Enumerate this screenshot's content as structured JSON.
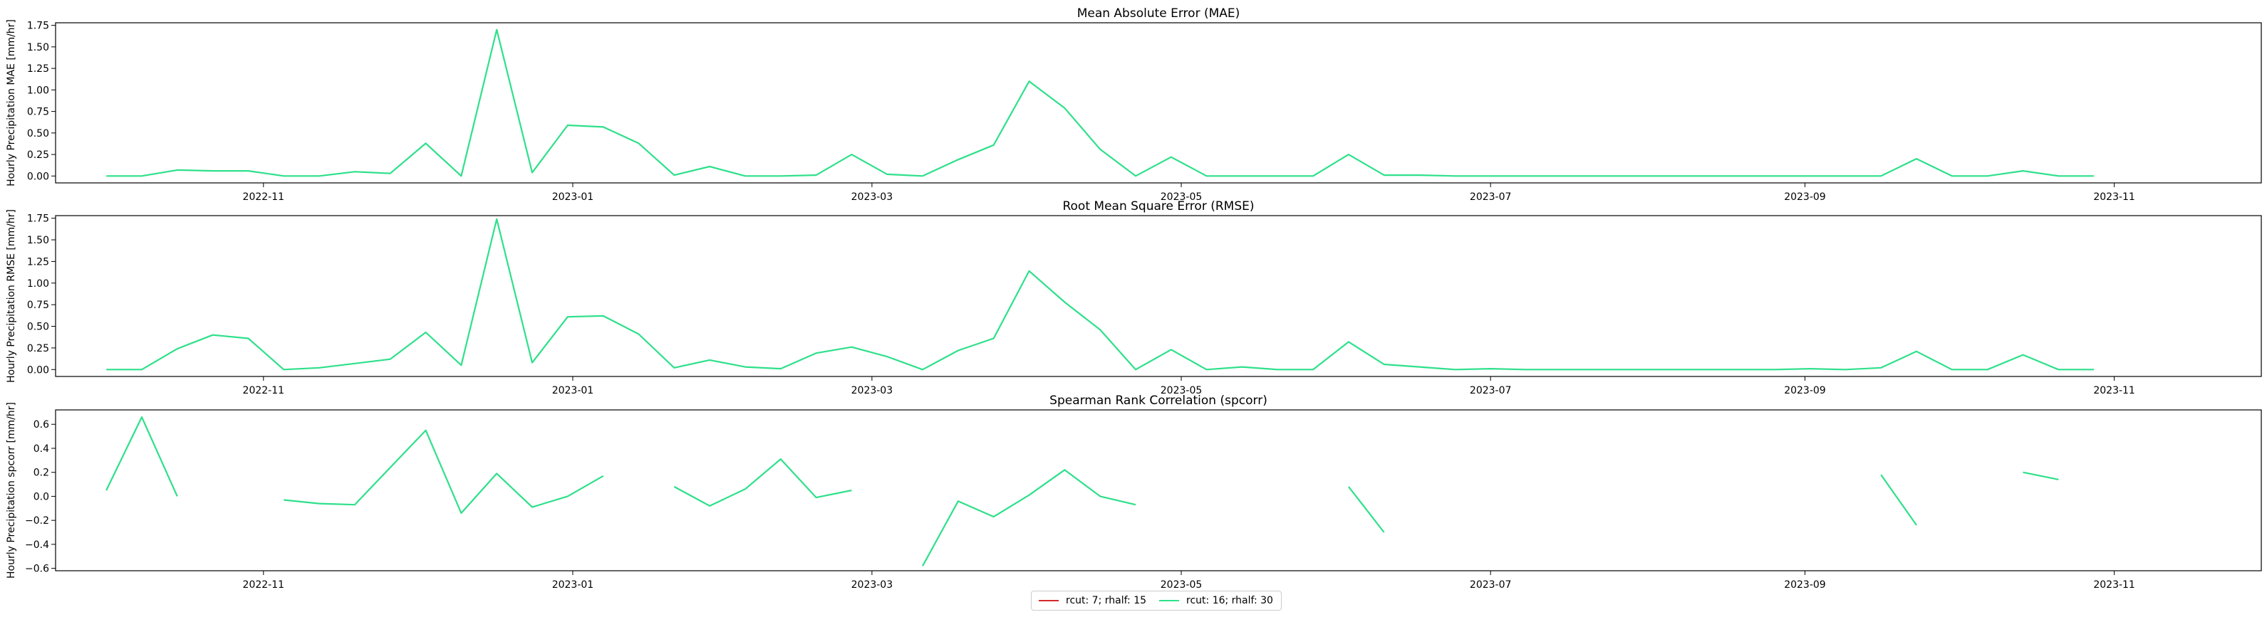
{
  "colors": {
    "series1": "#d62728",
    "series2": "#2ee08a"
  },
  "chart_data": [
    {
      "type": "line",
      "title": "Mean Absolute Error (MAE)",
      "ylabel": "Hourly Precipitation MAE [mm/hr]",
      "xlim": [
        "2022-09-21",
        "2023-11-30"
      ],
      "ylim": [
        -0.08,
        1.78
      ],
      "yticks": [
        0.0,
        0.25,
        0.5,
        0.75,
        1.0,
        1.25,
        1.5,
        1.75
      ],
      "yticklabels": [
        "0.00",
        "0.25",
        "0.50",
        "0.75",
        "1.00",
        "1.25",
        "1.50",
        "1.75"
      ],
      "xticks": [
        "2022-11-01",
        "2023-01-01",
        "2023-03-01",
        "2023-05-01",
        "2023-07-01",
        "2023-09-01",
        "2023-11-01"
      ],
      "xticklabels": [
        "2022-11",
        "2023-01",
        "2023-03",
        "2023-05",
        "2023-07",
        "2023-09",
        "2023-11"
      ],
      "series": [
        {
          "color": "#2ee08a",
          "points": [
            [
              "2022-10-01",
              0.0
            ],
            [
              "2022-10-08",
              0.0
            ],
            [
              "2022-10-15",
              0.07
            ],
            [
              "2022-10-22",
              0.06
            ],
            [
              "2022-10-29",
              0.06
            ],
            [
              "2022-11-05",
              0.0
            ],
            [
              "2022-11-12",
              0.0
            ],
            [
              "2022-11-19",
              0.05
            ],
            [
              "2022-11-26",
              0.03
            ],
            [
              "2022-12-03",
              0.38
            ],
            [
              "2022-12-10",
              0.0
            ],
            [
              "2022-12-17",
              1.7
            ],
            [
              "2022-12-24",
              0.04
            ],
            [
              "2022-12-31",
              0.59
            ],
            [
              "2023-01-07",
              0.57
            ],
            [
              "2023-01-14",
              0.38
            ],
            [
              "2023-01-21",
              0.01
            ],
            [
              "2023-01-28",
              0.11
            ],
            [
              "2023-02-04",
              0.0
            ],
            [
              "2023-02-11",
              0.0
            ],
            [
              "2023-02-18",
              0.01
            ],
            [
              "2023-02-25",
              0.25
            ],
            [
              "2023-03-04",
              0.02
            ],
            [
              "2023-03-11",
              0.0
            ],
            [
              "2023-03-18",
              0.19
            ],
            [
              "2023-03-25",
              0.36
            ],
            [
              "2023-04-01",
              1.1
            ],
            [
              "2023-04-08",
              0.79
            ],
            [
              "2023-04-15",
              0.31
            ],
            [
              "2023-04-22",
              0.0
            ],
            [
              "2023-04-29",
              0.22
            ],
            [
              "2023-05-06",
              0.0
            ],
            [
              "2023-05-13",
              0.0
            ],
            [
              "2023-05-20",
              0.0
            ],
            [
              "2023-05-27",
              0.0
            ],
            [
              "2023-06-03",
              0.25
            ],
            [
              "2023-06-10",
              0.01
            ],
            [
              "2023-06-17",
              0.01
            ],
            [
              "2023-06-24",
              0.0
            ],
            [
              "2023-07-01",
              0.0
            ],
            [
              "2023-07-08",
              0.0
            ],
            [
              "2023-07-15",
              0.0
            ],
            [
              "2023-07-22",
              0.0
            ],
            [
              "2023-07-29",
              0.0
            ],
            [
              "2023-08-05",
              0.0
            ],
            [
              "2023-08-12",
              0.0
            ],
            [
              "2023-08-19",
              0.0
            ],
            [
              "2023-08-26",
              0.0
            ],
            [
              "2023-09-02",
              0.0
            ],
            [
              "2023-09-09",
              0.0
            ],
            [
              "2023-09-16",
              0.0
            ],
            [
              "2023-09-23",
              0.2
            ],
            [
              "2023-09-30",
              0.0
            ],
            [
              "2023-10-07",
              0.0
            ],
            [
              "2023-10-14",
              0.06
            ],
            [
              "2023-10-21",
              0.0
            ],
            [
              "2023-10-28",
              0.0
            ]
          ]
        }
      ]
    },
    {
      "type": "line",
      "title": "Root Mean Square Error (RMSE)",
      "ylabel": "Hourly Precipitation RMSE [mm/hr]",
      "xlim": [
        "2022-09-21",
        "2023-11-30"
      ],
      "ylim": [
        -0.08,
        1.78
      ],
      "yticks": [
        0.0,
        0.25,
        0.5,
        0.75,
        1.0,
        1.25,
        1.5,
        1.75
      ],
      "yticklabels": [
        "0.00",
        "0.25",
        "0.50",
        "0.75",
        "1.00",
        "1.25",
        "1.50",
        "1.75"
      ],
      "xticks": [
        "2022-11-01",
        "2023-01-01",
        "2023-03-01",
        "2023-05-01",
        "2023-07-01",
        "2023-09-01",
        "2023-11-01"
      ],
      "xticklabels": [
        "2022-11",
        "2023-01",
        "2023-03",
        "2023-05",
        "2023-07",
        "2023-09",
        "2023-11"
      ],
      "series": [
        {
          "color": "#2ee08a",
          "points": [
            [
              "2022-10-01",
              0.0
            ],
            [
              "2022-10-08",
              0.0
            ],
            [
              "2022-10-15",
              0.24
            ],
            [
              "2022-10-22",
              0.4
            ],
            [
              "2022-10-29",
              0.36
            ],
            [
              "2022-11-05",
              0.0
            ],
            [
              "2022-11-12",
              0.02
            ],
            [
              "2022-11-19",
              0.07
            ],
            [
              "2022-11-26",
              0.12
            ],
            [
              "2022-12-03",
              0.43
            ],
            [
              "2022-12-10",
              0.05
            ],
            [
              "2022-12-17",
              1.74
            ],
            [
              "2022-12-24",
              0.08
            ],
            [
              "2022-12-31",
              0.61
            ],
            [
              "2023-01-07",
              0.62
            ],
            [
              "2023-01-14",
              0.41
            ],
            [
              "2023-01-21",
              0.02
            ],
            [
              "2023-01-28",
              0.11
            ],
            [
              "2023-02-04",
              0.03
            ],
            [
              "2023-02-11",
              0.01
            ],
            [
              "2023-02-18",
              0.19
            ],
            [
              "2023-02-25",
              0.26
            ],
            [
              "2023-03-04",
              0.15
            ],
            [
              "2023-03-11",
              0.0
            ],
            [
              "2023-03-18",
              0.22
            ],
            [
              "2023-03-25",
              0.36
            ],
            [
              "2023-04-01",
              1.14
            ],
            [
              "2023-04-08",
              0.78
            ],
            [
              "2023-04-15",
              0.46
            ],
            [
              "2023-04-22",
              0.0
            ],
            [
              "2023-04-29",
              0.23
            ],
            [
              "2023-05-06",
              0.0
            ],
            [
              "2023-05-13",
              0.03
            ],
            [
              "2023-05-20",
              0.0
            ],
            [
              "2023-05-27",
              0.0
            ],
            [
              "2023-06-03",
              0.32
            ],
            [
              "2023-06-10",
              0.06
            ],
            [
              "2023-06-17",
              0.03
            ],
            [
              "2023-06-24",
              0.0
            ],
            [
              "2023-07-01",
              0.01
            ],
            [
              "2023-07-08",
              0.0
            ],
            [
              "2023-07-15",
              0.0
            ],
            [
              "2023-07-22",
              0.0
            ],
            [
              "2023-07-29",
              0.0
            ],
            [
              "2023-08-05",
              0.0
            ],
            [
              "2023-08-12",
              0.0
            ],
            [
              "2023-08-19",
              0.0
            ],
            [
              "2023-08-26",
              0.0
            ],
            [
              "2023-09-02",
              0.01
            ],
            [
              "2023-09-09",
              0.0
            ],
            [
              "2023-09-16",
              0.02
            ],
            [
              "2023-09-23",
              0.21
            ],
            [
              "2023-09-30",
              0.0
            ],
            [
              "2023-10-07",
              0.0
            ],
            [
              "2023-10-14",
              0.17
            ],
            [
              "2023-10-21",
              0.0
            ],
            [
              "2023-10-28",
              0.0
            ]
          ]
        }
      ]
    },
    {
      "type": "line",
      "title": "Spearman Rank Correlation (spcorr)",
      "ylabel": "Hourly Precipitation spcorr [mm/hr]",
      "xlim": [
        "2022-09-21",
        "2023-11-30"
      ],
      "ylim": [
        -0.62,
        0.72
      ],
      "yticks": [
        -0.6,
        -0.4,
        -0.2,
        0.0,
        0.2,
        0.4,
        0.6
      ],
      "yticklabels": [
        "−0.6",
        "−0.4",
        "−0.2",
        "0.0",
        "0.2",
        "0.4",
        "0.6"
      ],
      "xticks": [
        "2022-11-01",
        "2023-01-01",
        "2023-03-01",
        "2023-05-01",
        "2023-07-01",
        "2023-09-01",
        "2023-11-01"
      ],
      "xticklabels": [
        "2022-11",
        "2023-01",
        "2023-03",
        "2023-05",
        "2023-07",
        "2023-09",
        "2023-11"
      ],
      "series": [
        {
          "color": "#2ee08a",
          "points": [
            [
              "2022-10-01",
              0.05
            ],
            [
              "2022-10-08",
              0.66
            ],
            [
              "2022-10-15",
              0.0
            ],
            [
              "2022-10-22",
              null
            ],
            [
              "2022-10-29",
              null
            ],
            [
              "2022-11-05",
              -0.03
            ],
            [
              "2022-11-12",
              -0.06
            ],
            [
              "2022-11-19",
              -0.07
            ],
            [
              "2022-11-26",
              0.24
            ],
            [
              "2022-12-03",
              0.55
            ],
            [
              "2022-12-10",
              -0.14
            ],
            [
              "2022-12-17",
              0.19
            ],
            [
              "2022-12-24",
              -0.09
            ],
            [
              "2022-12-31",
              0.0
            ],
            [
              "2023-01-07",
              0.17
            ],
            [
              "2023-01-14",
              null
            ],
            [
              "2023-01-21",
              0.08
            ],
            [
              "2023-01-28",
              -0.08
            ],
            [
              "2023-02-04",
              0.06
            ],
            [
              "2023-02-11",
              0.31
            ],
            [
              "2023-02-18",
              -0.01
            ],
            [
              "2023-02-25",
              0.05
            ],
            [
              "2023-03-04",
              null
            ],
            [
              "2023-03-11",
              -0.58
            ],
            [
              "2023-03-18",
              -0.04
            ],
            [
              "2023-03-25",
              -0.17
            ],
            [
              "2023-04-01",
              0.01
            ],
            [
              "2023-04-08",
              0.22
            ],
            [
              "2023-04-15",
              0.0
            ],
            [
              "2023-04-22",
              -0.07
            ],
            [
              "2023-04-29",
              null
            ],
            [
              "2023-05-06",
              null
            ],
            [
              "2023-05-13",
              null
            ],
            [
              "2023-05-20",
              null
            ],
            [
              "2023-05-27",
              null
            ],
            [
              "2023-06-03",
              0.08
            ],
            [
              "2023-06-10",
              -0.3
            ],
            [
              "2023-06-17",
              null
            ],
            [
              "2023-06-24",
              null
            ],
            [
              "2023-07-01",
              null
            ],
            [
              "2023-07-08",
              null
            ],
            [
              "2023-07-15",
              null
            ],
            [
              "2023-07-22",
              null
            ],
            [
              "2023-07-29",
              null
            ],
            [
              "2023-08-05",
              null
            ],
            [
              "2023-08-12",
              null
            ],
            [
              "2023-08-19",
              null
            ],
            [
              "2023-08-26",
              null
            ],
            [
              "2023-09-02",
              null
            ],
            [
              "2023-09-09",
              null
            ],
            [
              "2023-09-16",
              0.18
            ],
            [
              "2023-09-23",
              -0.24
            ],
            [
              "2023-09-30",
              null
            ],
            [
              "2023-10-07",
              null
            ],
            [
              "2023-10-14",
              0.2
            ],
            [
              "2023-10-21",
              0.14
            ]
          ]
        }
      ]
    }
  ],
  "legend": {
    "placement": "bottom-center",
    "entries": [
      {
        "label": "rcut: 7; rhalf: 15",
        "color": "#d62728"
      },
      {
        "label": "rcut: 16; rhalf: 30",
        "color": "#2ee08a"
      }
    ]
  }
}
